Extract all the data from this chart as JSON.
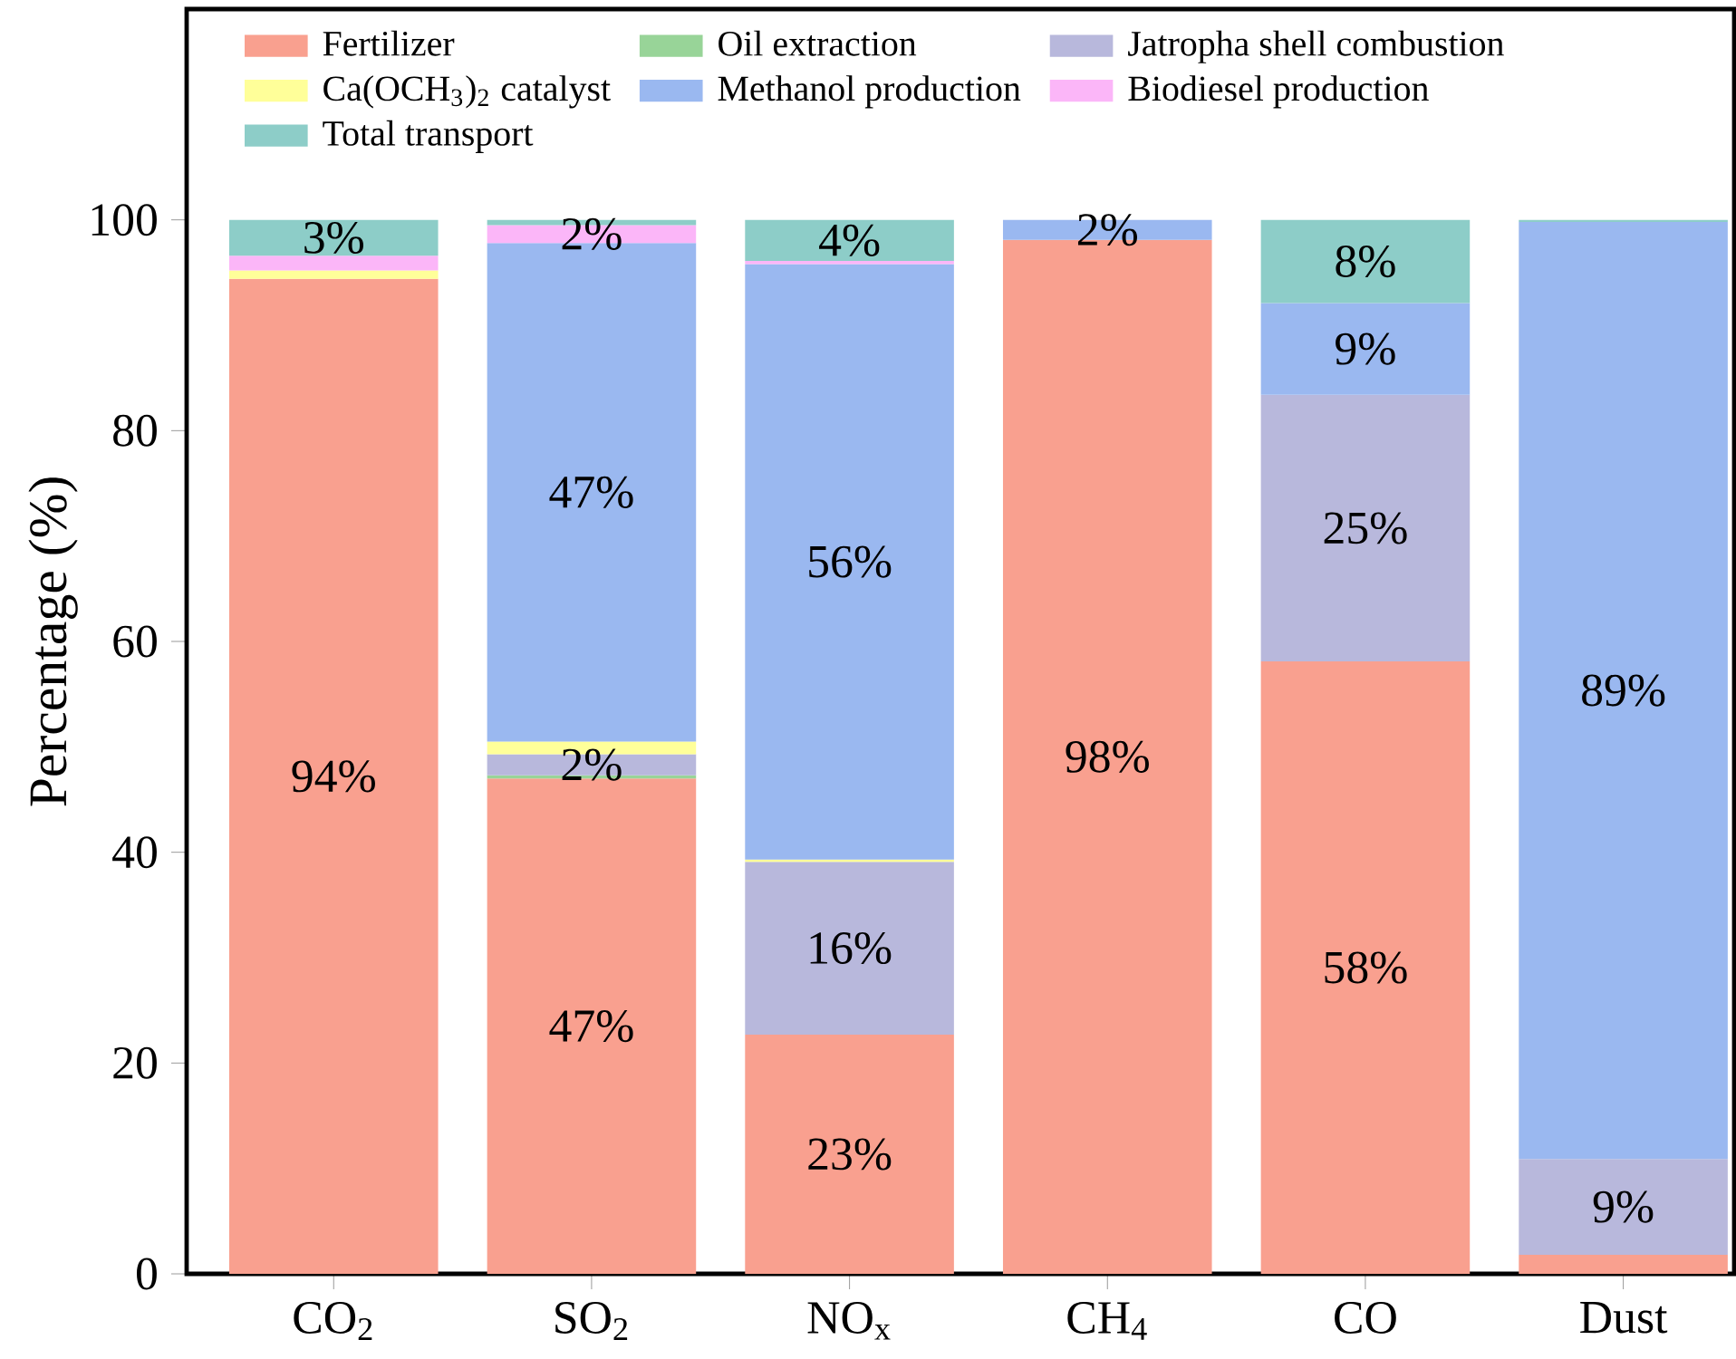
{
  "chart_data": {
    "type": "bar",
    "stacked": true,
    "ylabel": "Percentage (%)",
    "categories": [
      "CO$_{2}$",
      "SO$_{2}$",
      "NO$_{x}$",
      "CH$_{4}$",
      "CO",
      "Dust"
    ],
    "ylim": [
      0,
      120
    ],
    "yticks": [
      0,
      20,
      40,
      60,
      80,
      100
    ],
    "legend": "top",
    "series": [
      {
        "name": "Fertilizer",
        "color": "#f9a08f",
        "values": [
          94.4,
          47,
          22.7,
          98.1,
          58.1,
          1.8
        ],
        "value_labels": [
          "94%",
          "47%",
          "23%",
          "98%",
          "58%",
          null
        ]
      },
      {
        "name": "Oil extraction",
        "color": "#98d498",
        "values": [
          null,
          0.3,
          null,
          null,
          null,
          null
        ],
        "value_labels": [
          null,
          null,
          null,
          null,
          null,
          null
        ]
      },
      {
        "name": "Jatropha shell combustion",
        "color": "#b8b8dc",
        "values": [
          null,
          2,
          16.4,
          null,
          25.3,
          9.1
        ],
        "value_labels": [
          null,
          "2%",
          "16%",
          null,
          "25%",
          "9%"
        ]
      },
      {
        "name": "Ca(OCH$_{3}$)$_{2}$ catalyst",
        "color": "#ffff99",
        "values": [
          0.8,
          1.2,
          0.2,
          null,
          null,
          null
        ],
        "value_labels": [
          null,
          null,
          null,
          null,
          null,
          null
        ]
      },
      {
        "name": "Methanol production",
        "color": "#9ab8f0",
        "values": [
          null,
          47.3,
          56.5,
          1.9,
          8.7,
          88.9
        ],
        "value_labels": [
          null,
          "47%",
          "56%",
          "2%",
          "9%",
          "89%"
        ]
      },
      {
        "name": "Biodiesel production",
        "color": "#fbb6f8",
        "values": [
          1.4,
          1.7,
          0.3,
          null,
          null,
          null
        ],
        "value_labels": [
          null,
          "2%",
          null,
          null,
          null,
          null
        ]
      },
      {
        "name": "Total transport",
        "color": "#8dcdc8",
        "values": [
          3.4,
          0.5,
          3.9,
          null,
          7.9,
          0.2
        ],
        "value_labels": [
          "3%",
          null,
          "4%",
          null,
          "8%",
          null
        ]
      }
    ]
  }
}
